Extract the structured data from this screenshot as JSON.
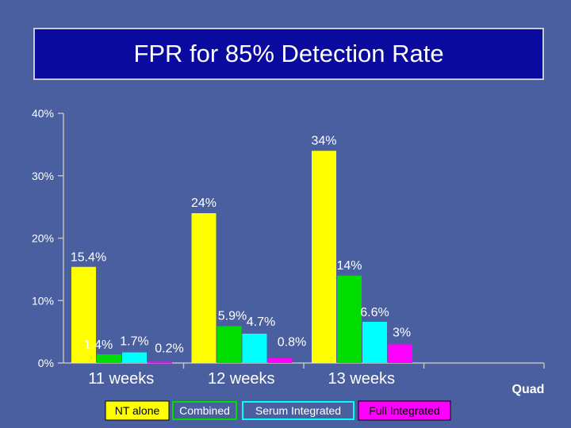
{
  "chart_data": {
    "type": "bar",
    "title": "FPR for 85% Detection Rate",
    "categories": [
      "11 weeks",
      "12 weeks",
      "13 weeks"
    ],
    "extra_label": "Quad",
    "y_ticks": [
      {
        "value": 0,
        "label": "0%"
      },
      {
        "value": 10,
        "label": "10%"
      },
      {
        "value": 20,
        "label": "20%"
      },
      {
        "value": 30,
        "label": "30%"
      },
      {
        "value": 40,
        "label": "40%"
      }
    ],
    "ylim": [
      0,
      40
    ],
    "grid": false,
    "series": [
      {
        "name": "NT alone",
        "color": "#FFFF00",
        "values": [
          15.4,
          24,
          34
        ],
        "labels": [
          "15.4%",
          "24%",
          "34%"
        ]
      },
      {
        "name": "Combined",
        "color": "#00DD00",
        "values": [
          1.4,
          5.9,
          14
        ],
        "labels": [
          "1.4%",
          "5.9%",
          "14%"
        ]
      },
      {
        "name": "Serum Integrated",
        "color": "#00FFFF",
        "values": [
          1.7,
          4.7,
          6.6
        ],
        "labels": [
          "1.7%",
          "4.7%",
          "6.6%"
        ]
      },
      {
        "name": "Full Integrated",
        "color": "#FF00FF",
        "values": [
          0.2,
          0.8,
          3
        ],
        "labels": [
          "0.2%",
          "0.8%",
          "3%"
        ]
      }
    ]
  }
}
